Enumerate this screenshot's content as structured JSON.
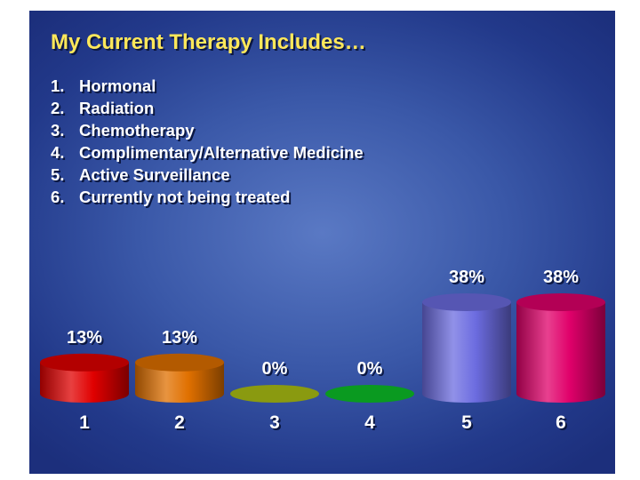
{
  "slide": {
    "title": "My Current Therapy Includes…",
    "options": [
      {
        "num": "1.",
        "text": "Hormonal"
      },
      {
        "num": "2.",
        "text": "Radiation"
      },
      {
        "num": "3.",
        "text": "Chemotherapy"
      },
      {
        "num": "4.",
        "text": "Complimentary/Alternative Medicine"
      },
      {
        "num": "5.",
        "text": "Active Surveillance"
      },
      {
        "num": "6.",
        "text": "Currently not being treated"
      }
    ]
  },
  "chart_data": {
    "type": "bar",
    "categories": [
      "1",
      "2",
      "3",
      "4",
      "5",
      "6"
    ],
    "values": [
      13,
      13,
      0,
      0,
      38,
      38
    ],
    "value_labels": [
      "13%",
      "13%",
      "0%",
      "0%",
      "38%",
      "38%"
    ],
    "colors": [
      "#e00000",
      "#e07000",
      "#8a9a10",
      "#0a9a20",
      "#6c6ce0",
      "#e0006a"
    ],
    "ylim": [
      0,
      38
    ],
    "bar_shape": "cylinder"
  }
}
